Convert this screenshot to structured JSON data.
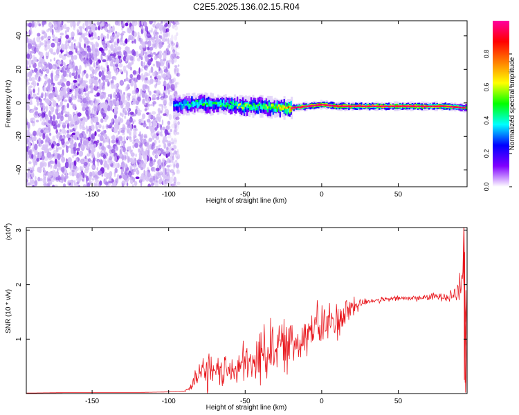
{
  "title": "C2E5.2025.136.02.15.R04",
  "colors": {
    "snr_line": "#e8141a",
    "speckle_dark": "#6a0ad8",
    "speckle_light": "#d7c2f6"
  },
  "chart_data": [
    {
      "type": "heatmap",
      "xlabel": "Height of straight line (km)",
      "ylabel": "Frequency (Hz)",
      "xlim": [
        -193,
        95
      ],
      "ylim": [
        -50,
        49
      ],
      "x_ticks": [
        -150,
        -100,
        -50,
        0,
        50
      ],
      "y_ticks": [
        40,
        20,
        0,
        -20,
        -40
      ],
      "x_tick_labels": [
        "-150",
        "-100",
        "-50",
        "0",
        "50"
      ],
      "y_tick_labels": [
        "40",
        "20",
        "0",
        "-20",
        "-40"
      ],
      "noise_region_x": [
        -193,
        -97
      ],
      "signal_band": {
        "x": [
          -97,
          -90,
          -80,
          -70,
          -60,
          -50,
          -40,
          -30,
          -20,
          -10,
          0,
          10,
          20,
          40,
          60,
          80,
          95
        ],
        "center_hz": [
          -2,
          -1,
          0,
          -1,
          -1,
          -2,
          -2,
          -3,
          -3,
          -2,
          -1,
          -2,
          -2,
          -2,
          -2,
          -2,
          -3
        ],
        "peak_amplitude": [
          0.35,
          0.45,
          0.5,
          0.5,
          0.55,
          0.6,
          0.5,
          0.7,
          0.85,
          0.9,
          1.0,
          0.95,
          0.95,
          0.95,
          0.95,
          0.95,
          0.6
        ]
      },
      "grid": false
    },
    {
      "type": "colorbar",
      "label": "Normalized spectral amplitude",
      "range": [
        0,
        1
      ],
      "ticks": [
        0.0,
        0.2,
        0.4,
        0.6,
        0.8
      ],
      "tick_labels": [
        "0.0",
        "0.2",
        "0.4",
        "0.6",
        "0.8"
      ],
      "colormap": [
        "#ffffff",
        "#8000ff",
        "#0000ff",
        "#00ffff",
        "#00ff00",
        "#ffff00",
        "#ff8000",
        "#ff0000",
        "#ff00a0"
      ]
    },
    {
      "type": "line",
      "xlabel": "Height of straight line (km)",
      "ylabel": "SNR (10 * v/v)",
      "y_multiplier": "(x10",
      "y_multiplier_exp": "4",
      "y_multiplier_close": ")",
      "xlim": [
        -193,
        95
      ],
      "ylim": [
        0,
        3.05
      ],
      "x_ticks": [
        -150,
        -100,
        -50,
        0,
        50
      ],
      "y_ticks": [
        1,
        2,
        3
      ],
      "x_tick_labels": [
        "-150",
        "-100",
        "-50",
        "0",
        "50"
      ],
      "y_tick_labels": [
        "1",
        "2",
        "3"
      ],
      "series": [
        {
          "x": [
            -193,
            -160,
            -120,
            -100,
            -90,
            -85,
            -80,
            -75,
            -70,
            -65,
            -60,
            -55,
            -50,
            -45,
            -40,
            -35,
            -30,
            -25,
            -20,
            -15,
            -10,
            -5,
            0,
            5,
            10,
            15,
            20,
            25,
            30,
            40,
            50,
            60,
            70,
            80,
            85,
            88,
            90,
            91,
            92,
            93,
            94,
            95
          ],
          "y": [
            0.01,
            0.02,
            0.02,
            0.03,
            0.04,
            0.12,
            0.35,
            0.4,
            0.35,
            0.45,
            0.4,
            0.45,
            0.55,
            0.5,
            0.75,
            0.8,
            0.95,
            0.85,
            0.9,
            1.0,
            1.1,
            1.2,
            1.25,
            1.3,
            1.35,
            1.45,
            1.6,
            1.65,
            1.7,
            1.72,
            1.75,
            1.75,
            1.77,
            1.8,
            1.8,
            1.85,
            1.9,
            2.0,
            2.1,
            3.05,
            0.2,
            1.0
          ],
          "noise": [
            0,
            0,
            0,
            0,
            0.01,
            0.08,
            0.3,
            0.45,
            0.25,
            0.35,
            0.25,
            0.35,
            0.45,
            0.35,
            0.6,
            0.6,
            0.55,
            0.5,
            0.5,
            0.45,
            0.4,
            0.45,
            0.45,
            0.4,
            0.4,
            0.35,
            0.25,
            0.12,
            0.06,
            0.05,
            0.05,
            0.06,
            0.06,
            0.1,
            0.15,
            0.2,
            0.3,
            0.3,
            0.3,
            0.3,
            0.3,
            0.3
          ]
        }
      ],
      "grid": false
    }
  ]
}
